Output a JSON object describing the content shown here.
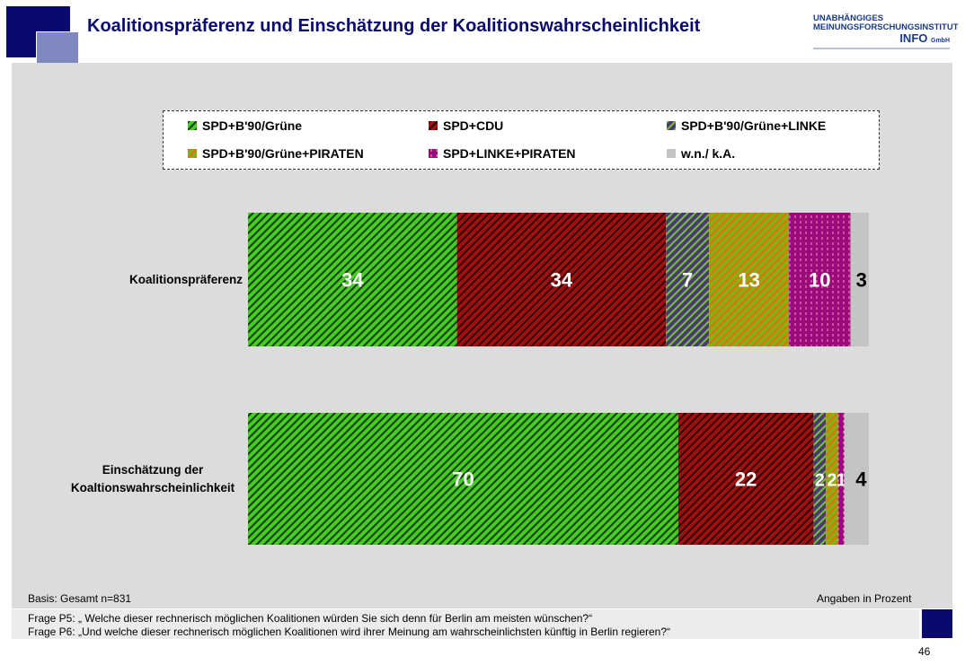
{
  "header": {
    "title": "Koalitionspräferenz  und Einschätzung der Koalitionswahrscheinlichkeit",
    "logo_line1": "UNABHÄNGIGES",
    "logo_line2": "MEINUNGSFORSCHUNGSINSTITUT",
    "logo_brand": "INFO",
    "logo_suffix": "GmbH"
  },
  "chart_data": {
    "type": "bar",
    "orientation": "horizontal",
    "stacked": true,
    "unit": "Angaben in Prozent",
    "categories": [
      "Koalitionspräferenz",
      "Einschätzung der Koaltionswahrscheinlichkeit"
    ],
    "series": [
      {
        "name": "SPD+B'90/Grüne",
        "values": [
          34,
          70
        ],
        "color": "#44cc22",
        "stripe": "#1a3a10"
      },
      {
        "name": "SPD+CDU",
        "values": [
          34,
          22
        ],
        "color": "#a01010",
        "stripe": "#300000"
      },
      {
        "name": "SPD+B'90/Grüne+LINKE",
        "values": [
          7,
          2
        ],
        "color": "#4a3a70",
        "stripe": "#77c040"
      },
      {
        "name": "SPD+B'90/Grüne+PIRATEN",
        "values": [
          13,
          2
        ],
        "color": "#88b010",
        "stripe": "#e07010"
      },
      {
        "name": "SPD+LINKE+PIRATEN",
        "values": [
          10,
          1
        ],
        "color": "#9a0a7a",
        "stripe": "#ff90c0"
      },
      {
        "name": "w.n./ k.A.",
        "values": [
          3,
          4
        ],
        "color": "#c4c4c4",
        "stripe": ""
      }
    ],
    "legend": "top"
  },
  "footer": {
    "basis": "Basis: Gesamt n=831",
    "unit": "Angaben in Prozent",
    "q1": "Frage P5: „ Welche dieser rechnerisch möglichen Koalitionen würden Sie sich denn für Berlin am meisten wünschen?“",
    "q2": "Frage P6: „Und welche dieser rechnerisch möglichen Koalitionen wird ihrer Meinung am wahrscheinlichsten künftig in Berlin regieren?“",
    "page": "46"
  }
}
